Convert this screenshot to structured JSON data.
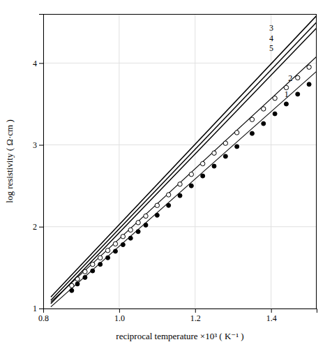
{
  "chart_data": {
    "type": "line",
    "title": "",
    "xlabel": "reciprocal temperature  ×10³   ( K⁻¹ )",
    "ylabel": "log resistivity  ( Ω·cm )",
    "xlim": [
      0.8,
      1.52
    ],
    "ylim": [
      1.0,
      4.6
    ],
    "xticks": [
      0.8,
      {
        "value": 1.0,
        "label": "1.0"
      },
      1.2,
      1.4
    ],
    "yticks": [
      1,
      2,
      3,
      4
    ],
    "grid": true,
    "series": [
      {
        "name": "1",
        "type": "scatter",
        "marker": "circle",
        "color": "#000000",
        "x": [
          0.875,
          0.89,
          0.91,
          0.93,
          0.95,
          0.97,
          0.99,
          1.01,
          1.03,
          1.05,
          1.07,
          1.1,
          1.13,
          1.16,
          1.19,
          1.22,
          1.25,
          1.28,
          1.31,
          1.35,
          1.38,
          1.41,
          1.44,
          1.47,
          1.5
        ],
        "values": [
          1.22,
          1.3,
          1.38,
          1.46,
          1.54,
          1.62,
          1.7,
          1.78,
          1.86,
          1.94,
          2.02,
          2.14,
          2.26,
          2.38,
          2.5,
          2.62,
          2.74,
          2.86,
          2.98,
          3.14,
          3.26,
          3.38,
          3.5,
          3.62,
          3.74
        ],
        "fit_x": [
          0.82,
          1.52
        ],
        "fit_values": [
          1.02,
          3.9
        ],
        "label_x": 1.435,
        "label_y": 3.62
      },
      {
        "name": "2",
        "type": "scatter",
        "marker": "circle-open",
        "color": "#000000",
        "x": [
          0.875,
          0.89,
          0.91,
          0.93,
          0.95,
          0.97,
          0.99,
          1.01,
          1.03,
          1.05,
          1.07,
          1.1,
          1.13,
          1.16,
          1.19,
          1.22,
          1.25,
          1.28,
          1.31,
          1.35,
          1.38,
          1.41,
          1.44,
          1.47,
          1.5
        ],
        "values": [
          1.28,
          1.36,
          1.45,
          1.54,
          1.62,
          1.71,
          1.79,
          1.88,
          1.96,
          2.05,
          2.13,
          2.26,
          2.39,
          2.52,
          2.64,
          2.77,
          2.9,
          3.02,
          3.15,
          3.31,
          3.44,
          3.57,
          3.7,
          3.82,
          3.95
        ],
        "fit_x": [
          0.82,
          1.52
        ],
        "fit_values": [
          1.08,
          4.08
        ],
        "label_x": 1.445,
        "label_y": 3.82
      },
      {
        "name": "3",
        "type": "line",
        "color": "#000000",
        "x": [
          0.82,
          1.52
        ],
        "values": [
          1.14,
          4.58
        ],
        "label_x": 1.395,
        "label_y": 4.43
      },
      {
        "name": "4",
        "type": "line",
        "color": "#000000",
        "x": [
          0.82,
          1.52
        ],
        "values": [
          1.1,
          4.5
        ],
        "label_x": 1.395,
        "label_y": 4.3
      },
      {
        "name": "5",
        "type": "line",
        "color": "#000000",
        "x": [
          0.82,
          1.52
        ],
        "values": [
          1.06,
          4.43
        ],
        "label_x": 1.395,
        "label_y": 4.18
      }
    ]
  }
}
